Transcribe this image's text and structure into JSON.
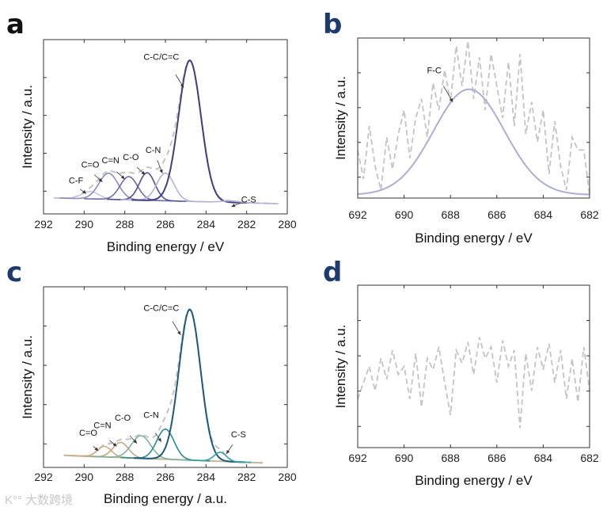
{
  "watermark": "K°° 大数跨境",
  "chart_data": [
    {
      "panel_label": "a",
      "panel_color": "#111111",
      "type": "line",
      "xlim": [
        292,
        280
      ],
      "ylim": [
        -0.08,
        1.12
      ],
      "xticks": [
        "292",
        "290",
        "288",
        "286",
        "284",
        "282",
        "280"
      ],
      "xlabel": "Binding energy / eV",
      "ylabel": "Intensity / a.u.",
      "baseline": {
        "x": [
          291.5,
          280.3
        ],
        "y": [
          0.03,
          -0.01
        ],
        "color": ""
      },
      "envelope_color": "#c4c4c4",
      "peaks": [
        {
          "label": "C-F",
          "center": 289.7,
          "height": 0.05,
          "fwhm": 1.0,
          "color": "#c9c9e0",
          "label_at": [
            290.4,
            0.13
          ],
          "arrow": [
            [
              290.2,
              0.09
            ],
            [
              289.9,
              0.06
            ]
          ]
        },
        {
          "label": "C=O",
          "center": 288.8,
          "height": 0.18,
          "fwhm": 1.1,
          "color": "#8c8cc0",
          "label_at": [
            289.7,
            0.24
          ],
          "arrow": [
            [
              289.5,
              0.19
            ],
            [
              289.1,
              0.14
            ]
          ]
        },
        {
          "label": "C=N",
          "center": 287.8,
          "height": 0.16,
          "fwhm": 1.0,
          "color": "#6c6caa",
          "label_at": [
            288.7,
            0.27
          ],
          "arrow": [
            [
              288.4,
              0.21
            ],
            [
              288.0,
              0.16
            ]
          ]
        },
        {
          "label": "C-O",
          "center": 286.9,
          "height": 0.19,
          "fwhm": 0.9,
          "color": "#505096",
          "label_at": [
            287.7,
            0.29
          ],
          "arrow": [
            [
              287.4,
              0.24
            ],
            [
              287.0,
              0.19
            ]
          ]
        },
        {
          "label": "C-N",
          "center": 286.0,
          "height": 0.19,
          "fwhm": 1.0,
          "color": "#b4b4d6",
          "label_at": [
            286.6,
            0.34
          ],
          "arrow": [
            [
              286.4,
              0.29
            ],
            [
              286.15,
              0.2
            ]
          ]
        },
        {
          "label": "C-C/C=C",
          "center": 284.8,
          "height": 0.97,
          "fwhm": 1.3,
          "color": "#3d3f80",
          "label_at": [
            286.2,
            0.98
          ],
          "arrow": [
            [
              285.5,
              0.88
            ],
            [
              285.1,
              0.79
            ]
          ]
        },
        {
          "label": "C-S",
          "center": 282.8,
          "height": 0.01,
          "fwhm": 1.0,
          "color": "#b4b4d6",
          "label_at": [
            281.9,
            0.0
          ],
          "arrow": [
            [
              282.3,
              -0.005
            ],
            [
              282.75,
              -0.03
            ]
          ]
        }
      ]
    },
    {
      "panel_label": "b",
      "panel_color": "#1f3a6e",
      "type": "line",
      "xlim": [
        692,
        682
      ],
      "ylim": [
        0,
        1
      ],
      "xticks": [
        "692",
        "690",
        "688",
        "686",
        "684",
        "682"
      ],
      "xlabel": "Binding energy / eV",
      "ylabel": "Intensity / a.u.",
      "baseline": {
        "x": [
          692,
          682
        ],
        "y": [
          0.02,
          0.02
        ],
        "color": ""
      },
      "envelope_color": "",
      "peaks": [
        {
          "label": "F-C",
          "center": 687.2,
          "height": 0.66,
          "fwhm": 3.6,
          "color": "#aeaed2",
          "label_at": [
            688.7,
            0.78
          ],
          "arrow": [
            [
              688.3,
              0.7
            ],
            [
              687.9,
              0.6
            ]
          ]
        }
      ],
      "raw": {
        "color": "#c4c4c4",
        "x": [
          692,
          691.75,
          691.5,
          691.25,
          691,
          690.75,
          690.5,
          690.25,
          690,
          689.75,
          689.5,
          689.25,
          689,
          688.75,
          688.5,
          688.25,
          688,
          687.75,
          687.5,
          687.25,
          687,
          686.75,
          686.5,
          686.25,
          686,
          685.75,
          685.5,
          685.25,
          685,
          684.75,
          684.5,
          684.25,
          684,
          683.75,
          683.5,
          683.25,
          683,
          682.75,
          682.5,
          682.25,
          682
        ],
        "y": [
          0.3,
          0.12,
          0.45,
          0.2,
          0.05,
          0.38,
          0.18,
          0.4,
          0.55,
          0.25,
          0.5,
          0.62,
          0.38,
          0.72,
          0.55,
          0.8,
          0.6,
          0.95,
          0.7,
          0.98,
          0.62,
          0.88,
          0.55,
          0.9,
          0.7,
          0.5,
          0.85,
          0.45,
          0.9,
          0.4,
          0.6,
          0.35,
          0.55,
          0.15,
          0.48,
          0.2,
          0.05,
          0.38,
          0.3,
          0.3,
          0.02
        ]
      }
    },
    {
      "panel_label": "c",
      "panel_color": "#1f3a6e",
      "type": "line",
      "xlim": [
        292,
        280
      ],
      "ylim": [
        -0.08,
        1.12
      ],
      "xticks": [
        "292",
        "290",
        "288",
        "286",
        "284",
        "282",
        "280"
      ],
      "xlabel": "Binding energy / a.u.",
      "ylabel": "Intensity / a.u.",
      "baseline": {
        "x": [
          291.0,
          281.2
        ],
        "y": [
          0.0,
          -0.05
        ],
        "color": "#c9b79a"
      },
      "envelope_color": "#c4c4c4",
      "peaks": [
        {
          "label": "C=O",
          "center": 289.0,
          "height": 0.07,
          "fwhm": 0.8,
          "color": "#c8ae8c",
          "label_at": [
            289.8,
            0.13
          ],
          "arrow": [
            [
              289.55,
              0.06
            ],
            [
              289.3,
              0.03
            ]
          ]
        },
        {
          "label": "C=N",
          "center": 288.2,
          "height": 0.1,
          "fwhm": 0.9,
          "color": "#c4a882",
          "label_at": [
            289.1,
            0.18
          ],
          "arrow": [
            [
              288.75,
              0.1
            ],
            [
              288.4,
              0.06
            ]
          ]
        },
        {
          "label": "C-O",
          "center": 287.2,
          "height": 0.15,
          "fwhm": 1.1,
          "color": "#7fb29e",
          "label_at": [
            288.1,
            0.23
          ],
          "arrow": [
            [
              287.75,
              0.13
            ],
            [
              287.4,
              0.08
            ]
          ]
        },
        {
          "label": "C-N",
          "center": 286.0,
          "height": 0.2,
          "fwhm": 1.0,
          "color": "#2a8a8e",
          "label_at": [
            286.7,
            0.25
          ],
          "arrow": [
            [
              286.5,
              0.15
            ],
            [
              286.2,
              0.09
            ]
          ]
        },
        {
          "label": "C-C/C=C",
          "center": 284.8,
          "height": 1.0,
          "fwhm": 1.25,
          "color": "#1b5a78",
          "label_at": [
            286.2,
            0.96
          ],
          "arrow": [
            [
              285.65,
              0.89
            ],
            [
              285.25,
              0.8
            ]
          ]
        },
        {
          "label": "C-S",
          "center": 283.3,
          "height": 0.06,
          "fwhm": 0.7,
          "color": "#3aa3a6",
          "label_at": [
            282.4,
            0.12
          ],
          "arrow": [
            [
              282.7,
              0.07
            ],
            [
              283.0,
              0.01
            ]
          ]
        }
      ]
    },
    {
      "panel_label": "d",
      "panel_color": "#1f3a6e",
      "type": "line",
      "xlim": [
        692,
        682
      ],
      "ylim": [
        0,
        1
      ],
      "xticks": [
        "692",
        "690",
        "688",
        "686",
        "684",
        "682"
      ],
      "xlabel": "Binding energy / eV",
      "ylabel": "Intensity / a.u.",
      "baseline": {
        "x": [
          692,
          682
        ],
        "y": [
          0,
          0
        ],
        "color": ""
      },
      "envelope_color": "",
      "peaks": [],
      "raw": {
        "color": "#c4c4c4",
        "x": [
          692,
          691.75,
          691.5,
          691.25,
          691,
          690.75,
          690.5,
          690.25,
          690,
          689.75,
          689.5,
          689.25,
          689,
          688.75,
          688.5,
          688.25,
          688,
          687.75,
          687.5,
          687.25,
          687,
          686.75,
          686.5,
          686.25,
          686,
          685.75,
          685.5,
          685.25,
          685,
          684.75,
          684.5,
          684.25,
          684,
          683.75,
          683.5,
          683.25,
          683,
          682.75,
          682.5,
          682.25,
          682
        ],
        "y": [
          0.3,
          0.4,
          0.5,
          0.35,
          0.55,
          0.42,
          0.6,
          0.45,
          0.5,
          0.3,
          0.58,
          0.25,
          0.55,
          0.48,
          0.62,
          0.4,
          0.2,
          0.6,
          0.52,
          0.65,
          0.45,
          0.68,
          0.55,
          0.62,
          0.4,
          0.66,
          0.5,
          0.6,
          0.12,
          0.58,
          0.35,
          0.62,
          0.48,
          0.64,
          0.4,
          0.6,
          0.3,
          0.55,
          0.28,
          0.62,
          0.35
        ]
      }
    }
  ]
}
